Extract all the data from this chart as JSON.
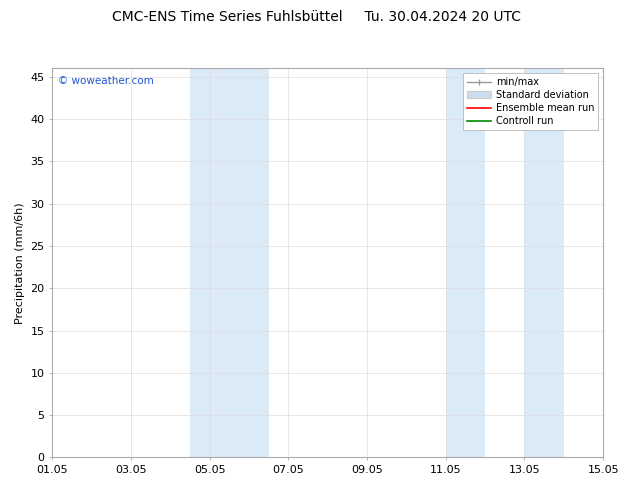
{
  "title": "CMC-ENS Time Series Fuhlsbüttel     Tu. 30.04.2024 20 UTC",
  "ylabel": "Precipitation (mm/6h)",
  "xlim": [
    0,
    14
  ],
  "ylim": [
    0,
    46
  ],
  "yticks": [
    0,
    5,
    10,
    15,
    20,
    25,
    30,
    35,
    40,
    45
  ],
  "xtick_labels": [
    "01.05",
    "03.05",
    "05.05",
    "07.05",
    "09.05",
    "11.05",
    "13.05",
    "15.05"
  ],
  "xtick_positions": [
    0,
    2,
    4,
    6,
    8,
    10,
    12,
    14
  ],
  "shaded_bands": [
    {
      "x_start": 3.5,
      "x_end": 4.5,
      "color": "#daeaf7"
    },
    {
      "x_start": 4.5,
      "x_end": 5.5,
      "color": "#daeaf7"
    },
    {
      "x_start": 10.0,
      "x_end": 11.0,
      "color": "#daeaf7"
    },
    {
      "x_start": 12.0,
      "x_end": 13.0,
      "color": "#daeaf7"
    }
  ],
  "legend_items": [
    {
      "label": "min/max",
      "type": "minmax",
      "color": "#999999"
    },
    {
      "label": "Standard deviation",
      "type": "band",
      "color": "#ccddee"
    },
    {
      "label": "Ensemble mean run",
      "type": "line",
      "color": "#ff0000",
      "lw": 1.2
    },
    {
      "label": "Controll run",
      "type": "line",
      "color": "#008800",
      "lw": 1.2
    }
  ],
  "watermark": "© woweather.com",
  "watermark_color": "#2255cc",
  "background_color": "#ffffff",
  "plot_bg_color": "#ffffff",
  "grid_color": "#dddddd",
  "title_fontsize": 10,
  "axis_fontsize": 8,
  "tick_fontsize": 8
}
